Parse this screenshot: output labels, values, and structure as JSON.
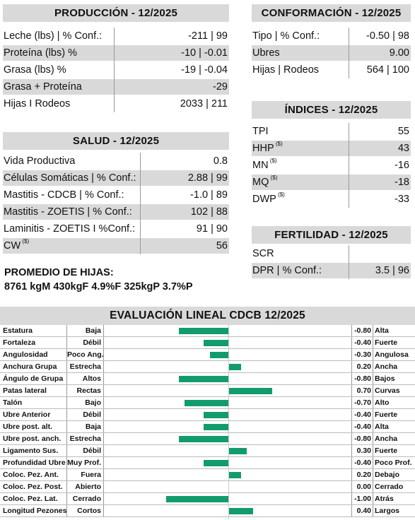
{
  "produccion": {
    "title": "PRODUCCIÓN - 12/2025",
    "rows": [
      {
        "label": "Leche (lbs) | % Conf.:",
        "value": "-211 | 99"
      },
      {
        "label": "Proteína (lbs) %",
        "value": "-10 | -0.01"
      },
      {
        "label": "Grasa (lbs) %",
        "value": "-19 | -0.04"
      },
      {
        "label": "Grasa + Proteína",
        "value": "-29"
      },
      {
        "label": "Hijas I Rodeos",
        "value": "2033 | 211"
      }
    ]
  },
  "salud": {
    "title": "SALUD - 12/2025",
    "rows": [
      {
        "label": "Vida Productiva",
        "value": "0.8"
      },
      {
        "label": "Células Somáticas | % Conf.:",
        "value": "2.88 | 99"
      },
      {
        "label": "Mastitis - CDCB | % Conf.:",
        "value": "-1.0 | 89"
      },
      {
        "label": "Mastitis - ZOETIS | % Conf.:",
        "value": "102 | 88"
      },
      {
        "label": "Laminitis - ZOETIS I %Conf.:",
        "value": "91 | 90"
      },
      {
        "label": "CW",
        "sup": "($)",
        "value": "56"
      }
    ]
  },
  "conformacion": {
    "title": "CONFORMACIÓN - 12/2025",
    "rows": [
      {
        "label": "Tipo | % Conf.:",
        "value": "-0.50 | 98"
      },
      {
        "label": "Ubres",
        "value": "9.00"
      },
      {
        "label": "Hijas | Rodeos",
        "value": "564 | 100"
      }
    ]
  },
  "indices": {
    "title": "ÍNDICES - 12/2025",
    "rows": [
      {
        "label": "TPI",
        "value": "55"
      },
      {
        "label": "HHP",
        "sup": "($)",
        "value": "43"
      },
      {
        "label": "MN",
        "sup": "($)",
        "value": "-16"
      },
      {
        "label": "MQ",
        "sup": "($)",
        "value": "-18"
      },
      {
        "label": "DWP",
        "sup": "($)",
        "value": "-33"
      }
    ]
  },
  "fertilidad": {
    "title": "FERTILIDAD - 12/2025",
    "rows": [
      {
        "label": "SCR",
        "value": ""
      },
      {
        "label": "DPR | % Conf.:",
        "value": "3.5 | 96"
      }
    ]
  },
  "promedio": {
    "title": "PROMEDIO DE HIJAS:",
    "values": "8761 kgM 430kgF 4.9%F 325kgP 3.7%P"
  },
  "lineal": {
    "title": "EVALUACIÓN LINEAL CDCB 12/2025",
    "colors": {
      "bar": "#129c6e"
    },
    "rows": [
      {
        "trait": "Estatura",
        "lo": "Baja",
        "value": -0.8,
        "label": "-0.80",
        "hi": "Alta"
      },
      {
        "trait": "Fortaleza",
        "lo": "Débil",
        "value": -0.4,
        "label": "-0.40",
        "hi": "Fuerte"
      },
      {
        "trait": "Angulosidad",
        "lo": "Poco Ang.",
        "value": -0.3,
        "label": "-0.30",
        "hi": "Angulosa"
      },
      {
        "trait": "Anchura Grupa",
        "lo": "Estrecha",
        "value": 0.2,
        "label": "0.20",
        "hi": "Ancha"
      },
      {
        "trait": "Ángulo de Grupa",
        "lo": "Altos",
        "value": -0.8,
        "label": "-0.80",
        "hi": "Bajos"
      },
      {
        "trait": "Patas lateral",
        "lo": "Rectas",
        "value": 0.7,
        "label": "0.70",
        "hi": "Curvas"
      },
      {
        "trait": "Talón",
        "lo": "Bajo",
        "value": -0.7,
        "label": "-0.70",
        "hi": "Alto"
      },
      {
        "trait": "Ubre Anterior",
        "lo": "Débil",
        "value": -0.4,
        "label": "-0.40",
        "hi": "Fuerte"
      },
      {
        "trait": "Ubre post. alt.",
        "lo": "Baja",
        "value": -0.4,
        "label": "-0.40",
        "hi": "Alta"
      },
      {
        "trait": "Ubre post. anch.",
        "lo": "Estrecha",
        "value": -0.8,
        "label": "-0.80",
        "hi": "Ancha"
      },
      {
        "trait": "Ligamento Sus.",
        "lo": "Débil",
        "value": 0.3,
        "label": "0.30",
        "hi": "Fuerte"
      },
      {
        "trait": "Profundidad Ubre",
        "lo": "Muy Prof.",
        "value": -0.4,
        "label": "-0.40",
        "hi": "Poco Prof."
      },
      {
        "trait": "Coloc. Pez. Ant.",
        "lo": "Fuera",
        "value": 0.2,
        "label": "0.20",
        "hi": "Debajo"
      },
      {
        "trait": "Coloc. Pez. Post.",
        "lo": "Abierto",
        "value": 0.0,
        "label": "0.00",
        "hi": "Cerrado"
      },
      {
        "trait": "Coloc. Pez. Lat.",
        "lo": "Cerrado",
        "value": -1.0,
        "label": "-1.00",
        "hi": "Atrás"
      },
      {
        "trait": "Longitud Pezones",
        "lo": "Cortos",
        "value": 0.4,
        "label": "0.40",
        "hi": "Largos"
      }
    ]
  }
}
